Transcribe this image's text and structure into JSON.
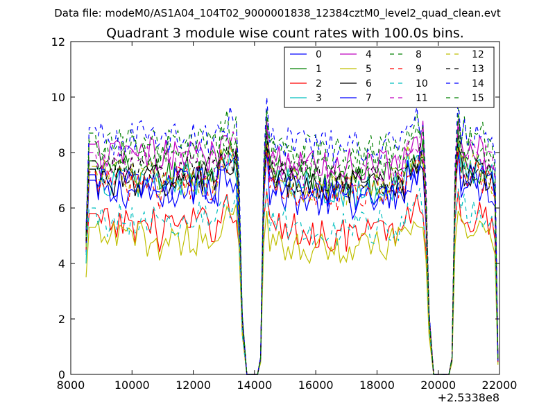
{
  "suptitle": "Data file: modeM0/AS1A04_104T02_9000001838_12384cztM0_level2_quad_clean.evt",
  "chart_data": {
    "type": "line",
    "title": "Quadrant 3 module wise count rates with 100.0s bins.",
    "xlabel": "",
    "ylabel": "",
    "x_offset_label": "+2.5338e8",
    "xlim": [
      8000,
      22000
    ],
    "ylim": [
      0,
      12
    ],
    "x_ticks": [
      8000,
      10000,
      12000,
      14000,
      16000,
      18000,
      20000,
      22000
    ],
    "y_ticks": [
      0,
      2,
      4,
      6,
      8,
      10,
      12
    ],
    "grid": false,
    "legend_placement": "top-right",
    "legend_columns": 4,
    "segments": [
      {
        "start": 8500,
        "end": 13650,
        "ramp_down_end": 13650
      },
      {
        "start": 14200,
        "end": 19750,
        "ramp_down_end": 20000
      },
      {
        "start": 20450,
        "end": 21950,
        "ramp_down_end": 21950
      }
    ],
    "series": [
      {
        "name": "0",
        "color": "#0000ff",
        "dash": false,
        "level": 6.6,
        "start": 4.4,
        "peak": 8.3
      },
      {
        "name": "1",
        "color": "#008000",
        "dash": false,
        "level": 7.3,
        "start": 4.8,
        "peak": 8.8
      },
      {
        "name": "2",
        "color": "#ff0000",
        "dash": false,
        "level": 5.4,
        "start": 4.5,
        "peak": 6.6
      },
      {
        "name": "3",
        "color": "#00bfbf",
        "dash": false,
        "level": 7.0,
        "start": 4.0,
        "peak": 8.4
      },
      {
        "name": "4",
        "color": "#bf00bf",
        "dash": false,
        "level": 7.9,
        "start": 5.3,
        "peak": 9.2
      },
      {
        "name": "5",
        "color": "#bfbf00",
        "dash": false,
        "level": 4.9,
        "start": 3.5,
        "peak": 5.9
      },
      {
        "name": "6",
        "color": "#000000",
        "dash": false,
        "level": 7.0,
        "start": 4.7,
        "peak": 8.2
      },
      {
        "name": "7",
        "color": "#0000ff",
        "dash": false,
        "level": 6.8,
        "start": 4.6,
        "peak": 8.0
      },
      {
        "name": "8",
        "color": "#008000",
        "dash": true,
        "level": 8.3,
        "start": 5.1,
        "peak": 9.6
      },
      {
        "name": "9",
        "color": "#ff0000",
        "dash": true,
        "level": 6.9,
        "start": 4.5,
        "peak": 8.1
      },
      {
        "name": "10",
        "color": "#00bfbf",
        "dash": true,
        "level": 5.6,
        "start": 4.3,
        "peak": 6.7
      },
      {
        "name": "11",
        "color": "#bf00bf",
        "dash": true,
        "level": 7.6,
        "start": 5.0,
        "peak": 9.0
      },
      {
        "name": "12",
        "color": "#bfbf00",
        "dash": true,
        "level": 7.1,
        "start": 4.6,
        "peak": 8.4
      },
      {
        "name": "13",
        "color": "#000000",
        "dash": true,
        "level": 7.3,
        "start": 4.8,
        "peak": 8.6
      },
      {
        "name": "14",
        "color": "#0000ff",
        "dash": true,
        "level": 8.5,
        "start": 5.2,
        "peak": 10.0
      },
      {
        "name": "15",
        "color": "#008000",
        "dash": true,
        "level": 8.0,
        "start": 5.0,
        "peak": 9.4
      }
    ]
  }
}
